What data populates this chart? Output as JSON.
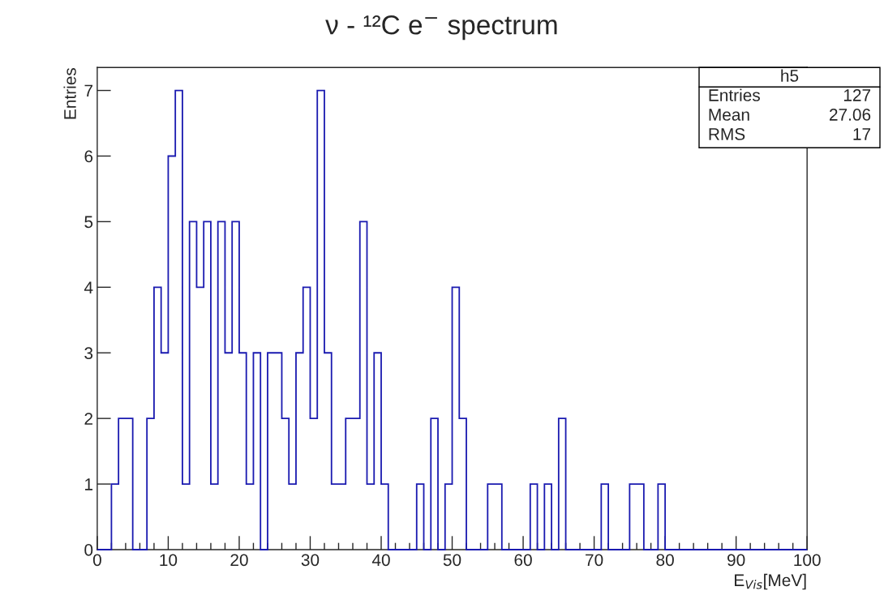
{
  "chart_data": {
    "type": "histogram",
    "title": "ν - ¹²C e$^{−}$ spectrum",
    "xlabel": "E$_{Vis}$[MeV]",
    "ylabel": "Entries",
    "bins": [
      0,
      1,
      2,
      3,
      4,
      5,
      6,
      7,
      8,
      9,
      10,
      11,
      12,
      13,
      14,
      15,
      16,
      17,
      18,
      19,
      20,
      21,
      22,
      23,
      24,
      25,
      26,
      27,
      28,
      29,
      30,
      31,
      32,
      33,
      34,
      35,
      36,
      37,
      38,
      39,
      40,
      41,
      42,
      43,
      44,
      45,
      46,
      47,
      48,
      49,
      50,
      51,
      52,
      53,
      54,
      55,
      56,
      57,
      58,
      59,
      60,
      61,
      62,
      63,
      64,
      65,
      66,
      67,
      68,
      69,
      70,
      71,
      72,
      73,
      74,
      75,
      76,
      77,
      78,
      79,
      80,
      81,
      82,
      83,
      84,
      85,
      86,
      87,
      88,
      89,
      90,
      91,
      92,
      93,
      94,
      95,
      96,
      97,
      98,
      99,
      100
    ],
    "values": [
      0,
      0,
      1,
      2,
      2,
      0,
      0,
      2,
      4,
      3,
      6,
      7,
      1,
      5,
      4,
      5,
      1,
      5,
      3,
      5,
      3,
      1,
      3,
      0,
      3,
      3,
      2,
      1,
      3,
      4,
      2,
      7,
      3,
      1,
      1,
      2,
      2,
      5,
      1,
      3,
      1,
      0,
      0,
      0,
      0,
      1,
      0,
      2,
      0,
      1,
      4,
      2,
      0,
      0,
      0,
      1,
      1,
      0,
      0,
      0,
      0,
      1,
      0,
      1,
      0,
      2,
      0,
      0,
      0,
      0,
      0,
      1,
      0,
      0,
      0,
      1,
      1,
      0,
      0,
      1,
      0,
      0,
      0,
      0,
      0,
      0,
      0,
      0,
      0,
      0,
      0,
      0,
      0,
      0,
      0,
      0,
      0,
      0,
      0,
      0
    ],
    "color": "#1a1ab0",
    "xlim": [
      0,
      100
    ],
    "xticks": [
      0,
      10,
      20,
      30,
      40,
      50,
      60,
      70,
      80,
      90,
      100
    ],
    "ylim": [
      0,
      7.35
    ],
    "yticks": [
      0,
      1,
      2,
      3,
      4,
      5,
      6,
      7
    ],
    "grid": false,
    "legend": false,
    "annotations": [
      "h5",
      "Entries",
      "127",
      "Mean",
      "27.06",
      "RMS",
      "17"
    ]
  }
}
